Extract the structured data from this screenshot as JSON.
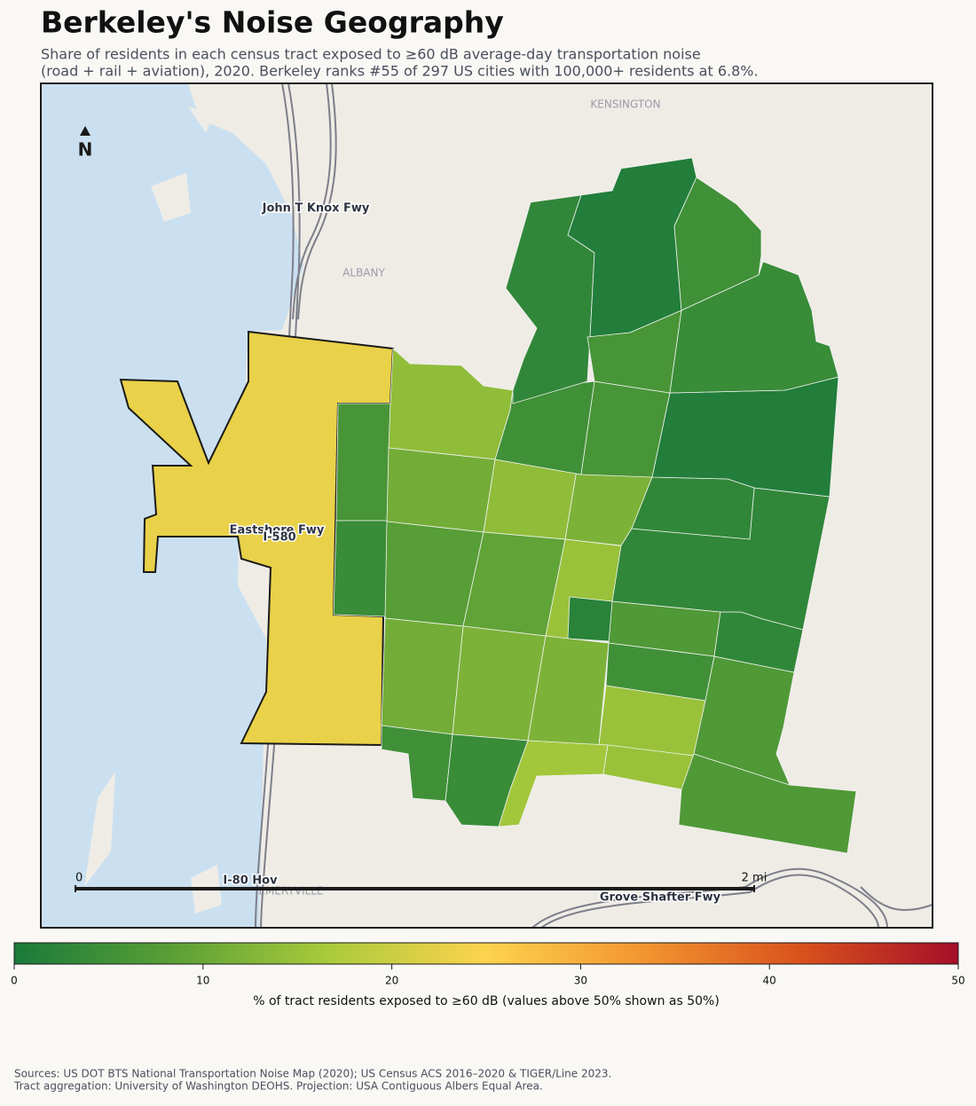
{
  "title": "Berkeley's Noise Geography",
  "subtitle": [
    "Share of residents in each census tract exposed to ≥60 dB average-day transportation noise",
    "(road + rail + aviation), 2020. Berkeley ranks #55 of 297 US cities with 100,000+ residents at 6.8%."
  ],
  "map": {
    "north": "N",
    "place_labels": [
      "KENSINGTON",
      "ALBANY",
      "EMERYVILLE"
    ],
    "road_labels": [
      "John T Knox Fwy",
      "Eastshore Fwy",
      "I-580",
      "I-80 Hov",
      "Grove Shafter Fwy"
    ],
    "scale_bar": [
      0,
      {
        "value": 2,
        "label": "2 mi"
      }
    ],
    "tract_values": [
      23,
      6,
      4,
      14,
      11,
      14,
      12,
      8,
      9,
      15,
      2,
      7,
      5,
      11,
      12,
      12,
      15,
      16,
      15,
      5,
      4,
      7,
      7,
      3,
      3,
      3,
      1,
      5,
      6,
      3,
      1,
      5,
      6,
      4
    ]
  },
  "colorbar": {
    "label": "% of tract residents exposed to ≥60 dB (values above 50% shown as 50%)",
    "lim": [
      0,
      50
    ],
    "ticks": [
      0,
      10,
      20,
      30,
      40,
      50
    ],
    "colors": [
      "#1a7a3a",
      "#5a9f36",
      "#a9cb3b",
      "#fdd34d",
      "#f29530",
      "#d9521c",
      "#a50f2a"
    ]
  },
  "sources": [
    "Sources: US DOT BTS National Transportation Noise Map (2020); US Census ACS 2016–2020 & TIGER/Line 2023.",
    "Tract aggregation: University of Washington DEOHS. Projection: USA Contiguous Albers Equal Area."
  ]
}
